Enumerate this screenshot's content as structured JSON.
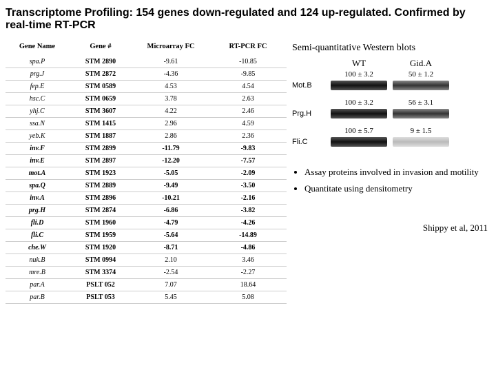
{
  "title": "Transcriptome Profiling: 154 genes down-regulated and 124 up-regulated. Confirmed by real-time RT-PCR",
  "table": {
    "headers": [
      "Gene Name",
      "Gene #",
      "Microarray FC",
      "RT-PCR FC"
    ],
    "rows": [
      {
        "name": "spa.P",
        "num": "STM 2890",
        "mfc": "-9.61",
        "rfc": "-10.85",
        "bold": false
      },
      {
        "name": "prg.J",
        "num": "STM 2872",
        "mfc": "-4.36",
        "rfc": "-9.85",
        "bold": false
      },
      {
        "name": "fep.E",
        "num": "STM 0589",
        "mfc": "4.53",
        "rfc": "4.54",
        "bold": false
      },
      {
        "name": "hsc.C",
        "num": "STM 0659",
        "mfc": "3.78",
        "rfc": "2.63",
        "bold": false
      },
      {
        "name": "yhj.C",
        "num": "STM 3607",
        "mfc": "4.22",
        "rfc": "2.46",
        "bold": false
      },
      {
        "name": "ssa.N",
        "num": "STM 1415",
        "mfc": "2.96",
        "rfc": "4.59",
        "bold": false
      },
      {
        "name": "yeb.K",
        "num": "STM 1887",
        "mfc": "2.86",
        "rfc": "2.36",
        "bold": false
      },
      {
        "name": "inv.F",
        "num": "STM 2899",
        "mfc": "-11.79",
        "rfc": "-9.83",
        "bold": true
      },
      {
        "name": "inv.E",
        "num": "STM 2897",
        "mfc": "-12.20",
        "rfc": "-7.57",
        "bold": true
      },
      {
        "name": "mot.A",
        "num": "STM 1923",
        "mfc": "-5.05",
        "rfc": "-2.09",
        "bold": true
      },
      {
        "name": "spa.Q",
        "num": "STM 2889",
        "mfc": "-9.49",
        "rfc": "-3.50",
        "bold": true
      },
      {
        "name": "inv.A",
        "num": "STM 2896",
        "mfc": "-10.21",
        "rfc": "-2.16",
        "bold": true
      },
      {
        "name": "prg.H",
        "num": "STM 2874",
        "mfc": "-6.86",
        "rfc": "-3.82",
        "bold": true
      },
      {
        "name": "fli.D",
        "num": "STM 1960",
        "mfc": "-4.79",
        "rfc": "-4.26",
        "bold": true
      },
      {
        "name": "fli.C",
        "num": "STM 1959",
        "mfc": "-5.64",
        "rfc": "-14.89",
        "bold": true
      },
      {
        "name": "che.W",
        "num": "STM 1920",
        "mfc": "-8.71",
        "rfc": "-4.86",
        "bold": true
      },
      {
        "name": "nuk.B",
        "num": "STM 0994",
        "mfc": "2.10",
        "rfc": "3.46",
        "bold": false
      },
      {
        "name": "mre.B",
        "num": "STM 3374",
        "mfc": "-2.54",
        "rfc": "-2.27",
        "bold": false
      },
      {
        "name": "par.A",
        "num": "PSLT 052",
        "mfc": "7.07",
        "rfc": "18.64",
        "bold": false
      },
      {
        "name": "par.B",
        "num": "PSLT 053",
        "mfc": "5.45",
        "rfc": "5.08",
        "bold": false
      }
    ]
  },
  "side": {
    "title": "Semi-quantitative Western blots",
    "col_wt": "WT",
    "col_gida": "Gid.A",
    "blots": [
      {
        "label": "Mot.B",
        "wt": "100 ± 3.2",
        "gida": "50 ± 1.2",
        "wt_band": "band-dark",
        "gida_band": "band-med"
      },
      {
        "label": "Prg.H",
        "wt": "100 ± 3.2",
        "gida": "56 ± 3.1",
        "wt_band": "band-dark",
        "gida_band": "band-med"
      },
      {
        "label": "Fli.C",
        "wt": "100 ± 5.7",
        "gida": "9 ± 1.5",
        "wt_band": "band-dark",
        "gida_band": "band-faint"
      }
    ],
    "bullets": [
      "Assay proteins involved in invasion and motility",
      "Quantitate using densitometry"
    ],
    "citation": "Shippy et al, 2011"
  }
}
